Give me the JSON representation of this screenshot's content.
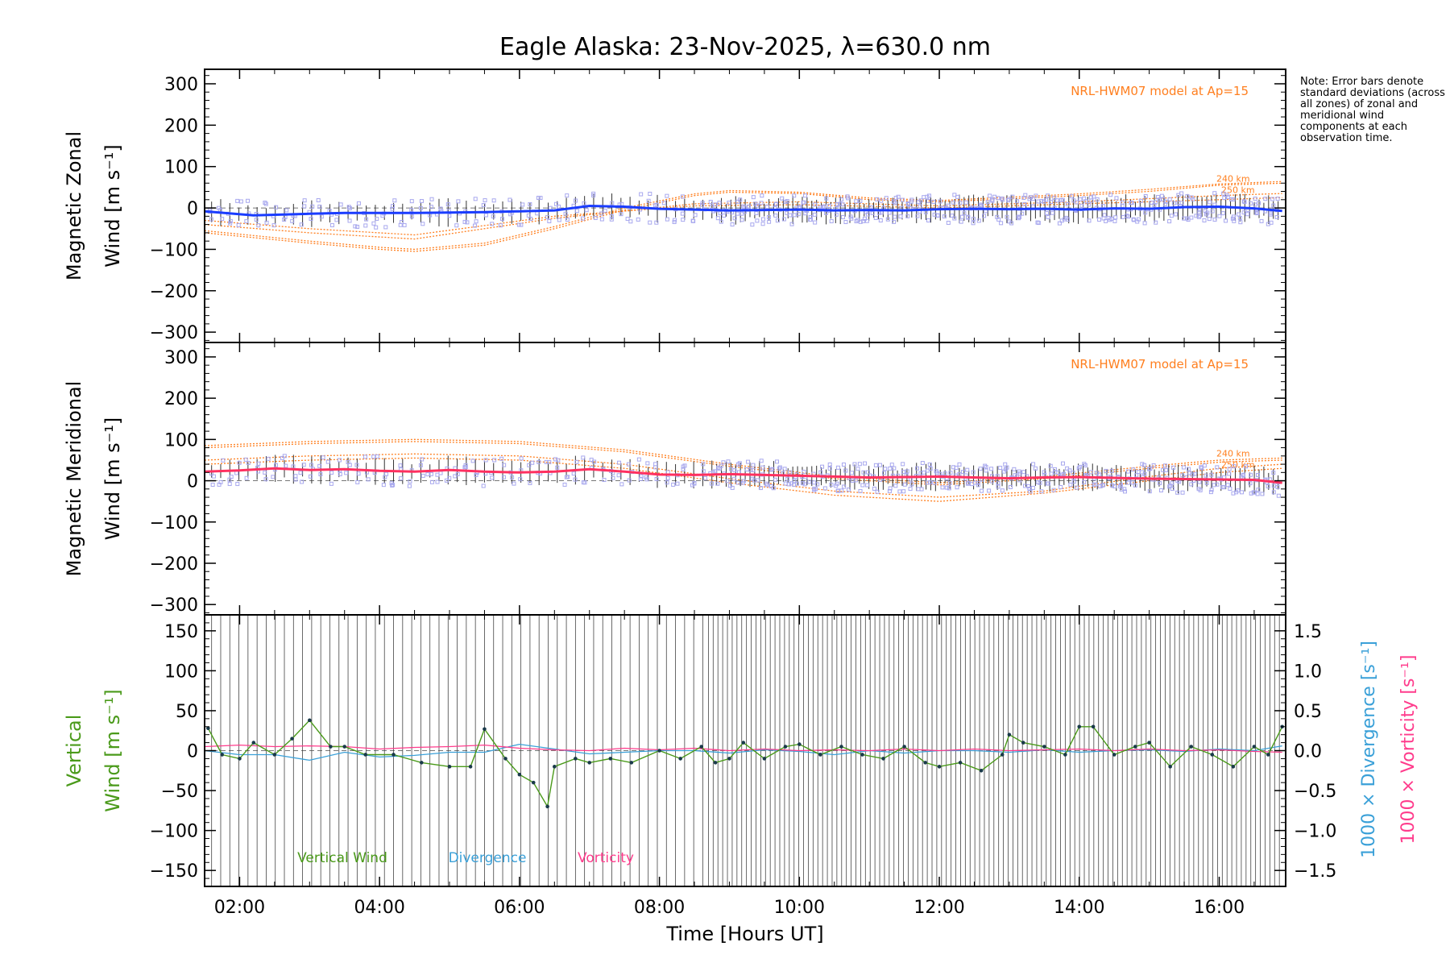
{
  "title": "Eagle Alaska: 23-Nov-2025, λ=630.0 nm",
  "note": "Note: Error bars denote standard deviations (across all zones) of zonal and meridional wind components at each observation time.",
  "x_axis": {
    "label": "Time [Hours UT]",
    "ticks": [
      "02:00",
      "04:00",
      "06:00",
      "08:00",
      "10:00",
      "12:00",
      "14:00",
      "16:00"
    ],
    "range_hours": [
      1.5,
      16.95
    ]
  },
  "colors": {
    "zonal": "#1a3cff",
    "meridional": "#ff3060",
    "model": "#ff7f1f",
    "vertical": "#4a9a1a",
    "divergence": "#3aa0d8",
    "vorticity": "#ff3c8c",
    "scatter": "#a8a8ee"
  },
  "chart_data": [
    {
      "type": "line",
      "title": "Magnetic Zonal Wind",
      "ylabel": "Magnetic Zonal Wind [m s⁻¹]",
      "ylim": [
        -325,
        335
      ],
      "yticks": [
        "300",
        "200",
        "100",
        "0",
        "−100",
        "−200",
        "−300"
      ],
      "model_label": "NRL-HWM07 model at Ap=15",
      "model_altitude_labels": [
        "240 km",
        "250 km"
      ],
      "series": [
        {
          "name": "Zonal wind",
          "x": [
            1.5,
            2.2,
            3.0,
            3.5,
            4.5,
            5.5,
            6.0,
            6.5,
            7.0,
            7.5,
            8.0,
            8.5,
            9.0,
            9.5,
            10.0,
            10.5,
            11.0,
            11.5,
            12.0,
            12.5,
            13.0,
            13.5,
            14.0,
            14.5,
            15.0,
            15.5,
            16.0,
            16.5,
            16.9
          ],
          "values": [
            -8,
            -18,
            -14,
            -12,
            -12,
            -10,
            -8,
            -6,
            5,
            3,
            -2,
            -4,
            -6,
            -5,
            -4,
            -6,
            -5,
            -6,
            -3,
            -2,
            -3,
            -2,
            -4,
            -1,
            -2,
            2,
            3,
            -1,
            -7
          ]
        }
      ],
      "model_curves": [
        {
          "name": "HWM07 240 km",
          "x": [
            1.5,
            3.0,
            4.0,
            4.5,
            5.5,
            6.5,
            7.5,
            8.5,
            9.0,
            10.0,
            11.0,
            12.0,
            13.0,
            14.0,
            15.0,
            16.0,
            16.9
          ],
          "values": [
            -60,
            -85,
            -100,
            -105,
            -90,
            -50,
            -5,
            30,
            38,
            35,
            20,
            15,
            22,
            30,
            40,
            55,
            60
          ]
        },
        {
          "name": "HWM07 250 km",
          "x": [
            1.5,
            3.0,
            4.0,
            4.5,
            5.5,
            6.5,
            7.5,
            8.5,
            9.0,
            10.0,
            11.0,
            12.0,
            13.0,
            14.0,
            15.0,
            16.0,
            16.9
          ],
          "values": [
            -55,
            -80,
            -95,
            -100,
            -85,
            -45,
            0,
            34,
            42,
            38,
            24,
            18,
            26,
            34,
            45,
            58,
            64
          ]
        },
        {
          "name": "HWM07 lower",
          "x": [
            1.5,
            3.0,
            4.5,
            6.5,
            8.5,
            10.0,
            12.0,
            14.0,
            16.0,
            16.9
          ],
          "values": [
            -40,
            -60,
            -75,
            -25,
            10,
            15,
            5,
            15,
            30,
            35
          ]
        },
        {
          "name": "HWM07 lowest",
          "x": [
            1.5,
            3.0,
            4.5,
            6.5,
            8.5,
            10.0,
            12.0,
            14.0,
            16.0,
            16.9
          ],
          "values": [
            -30,
            -50,
            -65,
            -20,
            5,
            8,
            0,
            10,
            20,
            25
          ]
        }
      ]
    },
    {
      "type": "line",
      "title": "Magnetic Meridional Wind",
      "ylabel": "Magnetic Meridional Wind [m s⁻¹]",
      "ylim": [
        -325,
        335
      ],
      "yticks": [
        "300",
        "200",
        "100",
        "0",
        "−100",
        "−200",
        "−300"
      ],
      "model_label": "NRL-HWM07 model at Ap=15",
      "model_altitude_labels": [
        "240 km",
        "250 km"
      ],
      "series": [
        {
          "name": "Meridional wind",
          "x": [
            1.5,
            2.0,
            2.5,
            3.0,
            3.5,
            4.0,
            4.5,
            5.0,
            5.5,
            6.0,
            6.5,
            7.0,
            7.5,
            8.0,
            8.5,
            9.0,
            9.5,
            10.0,
            10.5,
            11.0,
            11.5,
            12.0,
            12.5,
            13.0,
            13.5,
            14.0,
            14.5,
            15.0,
            15.5,
            16.0,
            16.5,
            16.9
          ],
          "values": [
            22,
            25,
            30,
            26,
            28,
            24,
            22,
            26,
            22,
            20,
            22,
            28,
            22,
            15,
            14,
            16,
            14,
            12,
            10,
            8,
            9,
            10,
            8,
            6,
            8,
            9,
            7,
            5,
            4,
            3,
            2,
            -5
          ]
        }
      ],
      "model_curves": [
        {
          "name": "HWM07 240 km",
          "x": [
            1.5,
            3.0,
            4.5,
            6.0,
            7.5,
            9.0,
            10.5,
            12.0,
            13.5,
            15.0,
            16.0,
            16.9
          ],
          "values": [
            85,
            95,
            100,
            95,
            75,
            40,
            10,
            -5,
            10,
            35,
            50,
            55
          ]
        },
        {
          "name": "HWM07 250 km",
          "x": [
            1.5,
            3.0,
            4.5,
            6.0,
            7.5,
            9.0,
            10.5,
            12.0,
            13.5,
            15.0,
            16.0,
            16.9
          ],
          "values": [
            80,
            90,
            95,
            90,
            70,
            35,
            5,
            -10,
            5,
            30,
            45,
            50
          ]
        },
        {
          "name": "HWM07 lower",
          "x": [
            1.5,
            3.0,
            4.5,
            6.0,
            7.5,
            9.0,
            10.5,
            12.0,
            13.5,
            15.0,
            16.0,
            16.9
          ],
          "values": [
            50,
            60,
            65,
            60,
            40,
            5,
            -25,
            -40,
            -25,
            10,
            30,
            40
          ]
        },
        {
          "name": "HWM07 lowest",
          "x": [
            1.5,
            3.0,
            4.5,
            6.0,
            7.5,
            9.0,
            10.5,
            12.0,
            13.5,
            15.0,
            16.0,
            16.9
          ],
          "values": [
            40,
            50,
            55,
            50,
            30,
            -5,
            -35,
            -50,
            -30,
            0,
            20,
            30
          ]
        }
      ]
    },
    {
      "type": "line",
      "title": "Vertical Wind, Divergence, Vorticity",
      "ylabel": "Vertical Wind [m s⁻¹]",
      "ylim": [
        -170,
        170
      ],
      "yticks": [
        "150",
        "100",
        "50",
        "0",
        "−50",
        "−100",
        "−150"
      ],
      "y2label_divergence": "1000 × Divergence [s⁻¹]",
      "y2label_vorticity": "1000 × Vorticity [s⁻¹]",
      "y2lim": [
        -1.7,
        1.7
      ],
      "y2ticks": [
        "1.5",
        "1.0",
        "0.5",
        "0.0",
        "−0.5",
        "−1.0",
        "−1.5"
      ],
      "legend": [
        "Vertical Wind",
        "Divergence",
        "Vorticity"
      ],
      "series": [
        {
          "name": "Vertical Wind",
          "axis": "left",
          "x": [
            1.55,
            1.75,
            2.0,
            2.2,
            2.5,
            2.75,
            3.0,
            3.3,
            3.5,
            3.8,
            4.2,
            4.6,
            5.0,
            5.3,
            5.5,
            5.8,
            6.0,
            6.2,
            6.4,
            6.5,
            6.8,
            7.0,
            7.3,
            7.6,
            8.0,
            8.3,
            8.6,
            8.8,
            9.0,
            9.2,
            9.5,
            9.8,
            10.0,
            10.3,
            10.6,
            10.9,
            11.2,
            11.5,
            11.8,
            12.0,
            12.3,
            12.6,
            12.9,
            13.0,
            13.2,
            13.5,
            13.8,
            14.0,
            14.2,
            14.5,
            14.8,
            15.0,
            15.3,
            15.6,
            15.9,
            16.2,
            16.5,
            16.7,
            16.9
          ],
          "values": [
            28,
            -5,
            -10,
            10,
            -5,
            15,
            38,
            5,
            5,
            -5,
            -5,
            -15,
            -20,
            -20,
            27,
            -10,
            -30,
            -40,
            -70,
            -20,
            -10,
            -15,
            -10,
            -15,
            0,
            -10,
            5,
            -15,
            -10,
            10,
            -10,
            5,
            8,
            -5,
            5,
            -5,
            -10,
            5,
            -15,
            -20,
            -15,
            -25,
            -5,
            20,
            10,
            5,
            -5,
            30,
            30,
            -5,
            5,
            10,
            -20,
            5,
            -5,
            -20,
            5,
            -5,
            30
          ]
        },
        {
          "name": "Divergence",
          "axis": "right",
          "x": [
            1.5,
            2.0,
            2.5,
            3.0,
            3.5,
            4.0,
            4.5,
            5.0,
            5.5,
            6.0,
            6.5,
            7.0,
            7.5,
            8.0,
            8.5,
            9.0,
            9.5,
            10.0,
            10.5,
            11.0,
            11.5,
            12.0,
            12.5,
            13.0,
            13.5,
            14.0,
            14.5,
            15.0,
            15.5,
            16.0,
            16.5,
            16.9
          ],
          "values": [
            0.0,
            -0.05,
            -0.05,
            -0.12,
            -0.02,
            -0.08,
            -0.06,
            -0.02,
            -0.02,
            0.08,
            0.02,
            -0.04,
            -0.02,
            0.0,
            0.0,
            -0.03,
            0.01,
            -0.01,
            -0.05,
            0.0,
            -0.03,
            0.0,
            0.0,
            -0.02,
            0.01,
            -0.02,
            0.0,
            0.01,
            -0.01,
            0.02,
            0.0,
            0.06
          ]
        },
        {
          "name": "Vorticity",
          "axis": "right",
          "x": [
            1.5,
            2.0,
            2.5,
            3.0,
            3.5,
            4.0,
            4.5,
            5.0,
            5.5,
            6.0,
            6.5,
            7.0,
            7.5,
            8.0,
            8.5,
            9.0,
            9.5,
            10.0,
            10.5,
            11.0,
            11.5,
            12.0,
            12.5,
            13.0,
            13.5,
            14.0,
            14.5,
            15.0,
            15.5,
            16.0,
            16.5,
            16.9
          ],
          "values": [
            0.05,
            0.07,
            0.05,
            0.06,
            0.05,
            0.02,
            0.04,
            0.05,
            0.07,
            0.03,
            0.01,
            0.0,
            0.03,
            0.01,
            0.03,
            0.0,
            0.02,
            0.0,
            0.01,
            0.0,
            0.02,
            0.0,
            0.02,
            0.0,
            0.01,
            0.02,
            0.0,
            0.02,
            0.0,
            0.01,
            -0.01,
            -0.02
          ]
        }
      ]
    }
  ]
}
